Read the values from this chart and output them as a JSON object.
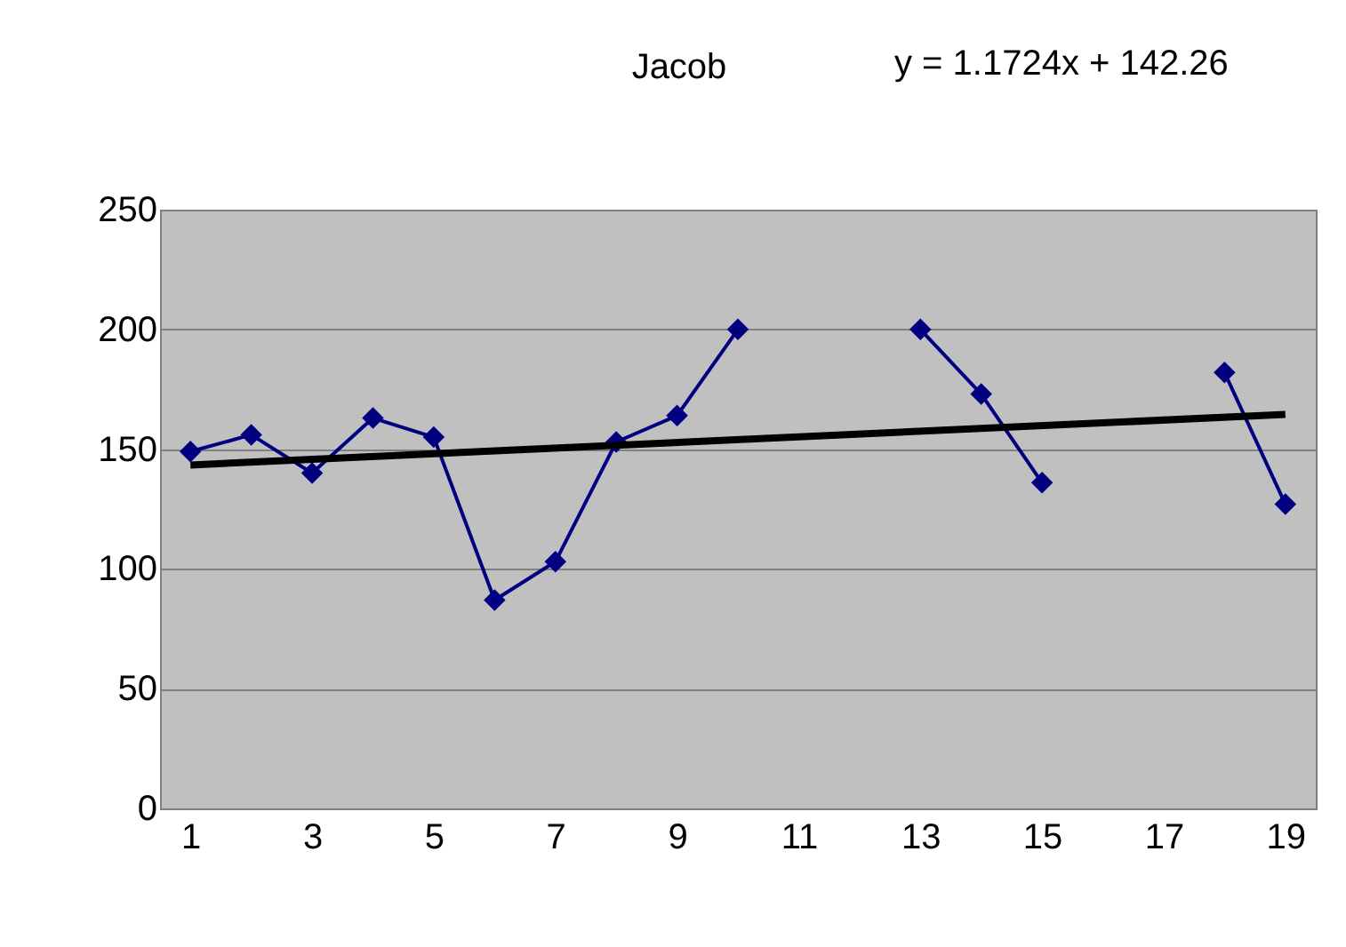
{
  "chart_data": {
    "type": "line",
    "title": "Jacob",
    "annotations": [
      "y = 1.1724x + 142.26"
    ],
    "series": [
      {
        "color": "#000080",
        "x": [
          1,
          2,
          3,
          4,
          5,
          6,
          7,
          8,
          9,
          10,
          11,
          12,
          13,
          14,
          15,
          16,
          17,
          18,
          19
        ],
        "values": [
          149,
          156,
          140,
          163,
          155,
          87,
          103,
          153,
          164,
          200,
          null,
          null,
          200,
          173,
          136,
          null,
          null,
          182,
          127
        ],
        "marker": "diamond"
      },
      {
        "type": "line",
        "color": "#000000",
        "x": [
          1,
          19
        ],
        "values": [
          143.4,
          164.5
        ],
        "marker": "none"
      }
    ],
    "xlim": [
      0.5,
      19.5
    ],
    "xticks": [
      1,
      3,
      5,
      7,
      9,
      11,
      13,
      15,
      17,
      19
    ],
    "ylim": [
      0,
      250
    ],
    "yticks": [
      0,
      50,
      100,
      150,
      200,
      250
    ],
    "grid": "y"
  }
}
